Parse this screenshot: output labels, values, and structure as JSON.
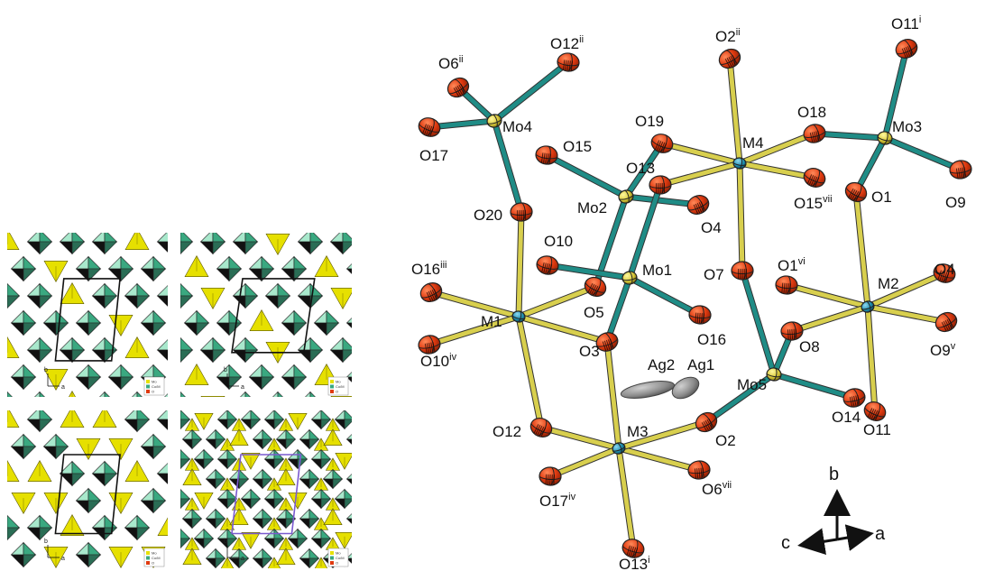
{
  "colors": {
    "oxygen": "#e03a10",
    "oxygen_dark": "#7a1a05",
    "metal_m": "#1f8fb0",
    "molybdenum": "#d9c93a",
    "silver": "#8a8a8a",
    "bond_mo": "#1f8c86",
    "bond_m": "#d8cf4e",
    "poly_green": "#3aa880",
    "poly_green_light": "#a8e8cc",
    "poly_yellow": "#e6e000",
    "poly_dark": "#111111"
  },
  "panels": [
    {
      "id": "p1",
      "axis_b": "b",
      "axis_a": "a",
      "legend": [
        "Mo",
        "Co/M",
        "O"
      ]
    },
    {
      "id": "p2",
      "axis_b": "b",
      "axis_a": "a",
      "legend": [
        "Mo",
        "Co/M",
        "O"
      ]
    },
    {
      "id": "p3",
      "axis_b": "b",
      "axis_a": "a",
      "legend": [
        "Mo",
        "Co/M",
        "O"
      ]
    },
    {
      "id": "p4",
      "axis_b": "b",
      "axis_a": "a",
      "legend": [
        "Mo",
        "Co/M",
        "O"
      ]
    }
  ],
  "structure": {
    "atoms": [
      {
        "id": "O6ii",
        "base": "O6",
        "sup": "ii",
        "type": "O"
      },
      {
        "id": "O12ii",
        "base": "O12",
        "sup": "ii",
        "type": "O"
      },
      {
        "id": "Mo4",
        "base": "Mo4",
        "sup": "",
        "type": "Mo"
      },
      {
        "id": "O17",
        "base": "O17",
        "sup": "",
        "type": "O"
      },
      {
        "id": "O20",
        "base": "O20",
        "sup": "",
        "type": "O"
      },
      {
        "id": "O16iii",
        "base": "O16",
        "sup": "iii",
        "type": "O"
      },
      {
        "id": "M1",
        "base": "M1",
        "sup": "",
        "type": "M"
      },
      {
        "id": "O10iv",
        "base": "O10",
        "sup": "iv",
        "type": "O"
      },
      {
        "id": "O12",
        "base": "O12",
        "sup": "",
        "type": "O"
      },
      {
        "id": "O17iv",
        "base": "O17",
        "sup": "iv",
        "type": "O"
      },
      {
        "id": "M3",
        "base": "M3",
        "sup": "",
        "type": "M"
      },
      {
        "id": "O13i",
        "base": "O13",
        "sup": "i",
        "type": "O"
      },
      {
        "id": "O6vii",
        "base": "O6",
        "sup": "vii",
        "type": "O"
      },
      {
        "id": "O2",
        "base": "O2",
        "sup": "",
        "type": "O"
      },
      {
        "id": "O15",
        "base": "O15",
        "sup": "",
        "type": "O"
      },
      {
        "id": "Mo2",
        "base": "Mo2",
        "sup": "",
        "type": "Mo"
      },
      {
        "id": "O19",
        "base": "O19",
        "sup": "",
        "type": "O"
      },
      {
        "id": "O13",
        "base": "O13",
        "sup": "",
        "type": "O"
      },
      {
        "id": "O4",
        "base": "O4",
        "sup": "",
        "type": "O"
      },
      {
        "id": "O10",
        "base": "O10",
        "sup": "",
        "type": "O"
      },
      {
        "id": "Mo1",
        "base": "Mo1",
        "sup": "",
        "type": "Mo"
      },
      {
        "id": "O5",
        "base": "O5",
        "sup": "",
        "type": "O"
      },
      {
        "id": "O16",
        "base": "O16",
        "sup": "",
        "type": "O"
      },
      {
        "id": "O3",
        "base": "O3",
        "sup": "",
        "type": "O"
      },
      {
        "id": "Ag2",
        "base": "Ag2",
        "sup": "",
        "type": "Ag"
      },
      {
        "id": "Ag1",
        "base": "Ag1",
        "sup": "",
        "type": "Ag"
      },
      {
        "id": "O2ii",
        "base": "O2",
        "sup": "ii",
        "type": "O"
      },
      {
        "id": "M4",
        "base": "M4",
        "sup": "",
        "type": "M"
      },
      {
        "id": "O18",
        "base": "O18",
        "sup": "",
        "type": "O"
      },
      {
        "id": "O15vii",
        "base": "O15",
        "sup": "vii",
        "type": "O"
      },
      {
        "id": "O7",
        "base": "O7",
        "sup": "",
        "type": "O"
      },
      {
        "id": "O11i",
        "base": "O11",
        "sup": "i",
        "type": "O"
      },
      {
        "id": "Mo3",
        "base": "Mo3",
        "sup": "",
        "type": "Mo"
      },
      {
        "id": "O9",
        "base": "O9",
        "sup": "",
        "type": "O"
      },
      {
        "id": "O1",
        "base": "O1",
        "sup": "",
        "type": "O"
      },
      {
        "id": "O1vi",
        "base": "O1",
        "sup": "vi",
        "type": "O"
      },
      {
        "id": "M2",
        "base": "M2",
        "sup": "",
        "type": "M"
      },
      {
        "id": "O4b",
        "base": "O4",
        "sup": "",
        "type": "O"
      },
      {
        "id": "O8",
        "base": "O8",
        "sup": "",
        "type": "O"
      },
      {
        "id": "O9v",
        "base": "O9",
        "sup": "v",
        "type": "O"
      },
      {
        "id": "Mo5",
        "base": "Mo5",
        "sup": "",
        "type": "Mo"
      },
      {
        "id": "O14",
        "base": "O14",
        "sup": "",
        "type": "O"
      },
      {
        "id": "O11",
        "base": "O11",
        "sup": "",
        "type": "O"
      }
    ],
    "bonds": [
      [
        "Mo4",
        "O6ii",
        "mo"
      ],
      [
        "Mo4",
        "O12ii",
        "mo"
      ],
      [
        "Mo4",
        "O17",
        "mo"
      ],
      [
        "Mo4",
        "O20",
        "mo"
      ],
      [
        "M1",
        "O20",
        "m"
      ],
      [
        "M1",
        "O16iii",
        "m"
      ],
      [
        "M1",
        "O10iv",
        "m"
      ],
      [
        "M1",
        "O5",
        "m"
      ],
      [
        "M1",
        "O3",
        "m"
      ],
      [
        "M1",
        "O12",
        "m"
      ],
      [
        "M3",
        "O12",
        "m"
      ],
      [
        "M3",
        "O17iv",
        "m"
      ],
      [
        "M3",
        "O13i",
        "m"
      ],
      [
        "M3",
        "O6vii",
        "m"
      ],
      [
        "M3",
        "O2",
        "m"
      ],
      [
        "M3",
        "O3",
        "m"
      ],
      [
        "Mo2",
        "O15",
        "mo"
      ],
      [
        "Mo2",
        "O19",
        "mo"
      ],
      [
        "Mo2",
        "O4",
        "mo"
      ],
      [
        "Mo2",
        "O5",
        "mo"
      ],
      [
        "Mo1",
        "O10",
        "mo"
      ],
      [
        "Mo1",
        "O13",
        "mo"
      ],
      [
        "Mo1",
        "O16",
        "mo"
      ],
      [
        "Mo1",
        "O3",
        "mo"
      ],
      [
        "M4",
        "O2ii",
        "m"
      ],
      [
        "M4",
        "O19",
        "m"
      ],
      [
        "M4",
        "O13",
        "m"
      ],
      [
        "M4",
        "O18",
        "m"
      ],
      [
        "M4",
        "O15vii",
        "m"
      ],
      [
        "M4",
        "O7",
        "m"
      ],
      [
        "Mo3",
        "O18",
        "mo"
      ],
      [
        "Mo3",
        "O11i",
        "mo"
      ],
      [
        "Mo3",
        "O9",
        "mo"
      ],
      [
        "Mo3",
        "O1",
        "mo"
      ],
      [
        "M2",
        "O1",
        "m"
      ],
      [
        "M2",
        "O1vi",
        "m"
      ],
      [
        "M2",
        "O4b",
        "m"
      ],
      [
        "M2",
        "O8",
        "m"
      ],
      [
        "M2",
        "O9v",
        "m"
      ],
      [
        "M2",
        "O11",
        "m"
      ],
      [
        "Mo5",
        "O7",
        "mo"
      ],
      [
        "Mo5",
        "O8",
        "mo"
      ],
      [
        "Mo5",
        "O14",
        "mo"
      ],
      [
        "Mo5",
        "O2",
        "mo"
      ],
      [
        "Ag2",
        "Ag1",
        "ag"
      ]
    ],
    "axes": {
      "b": "b",
      "a": "a",
      "c": "c"
    }
  }
}
